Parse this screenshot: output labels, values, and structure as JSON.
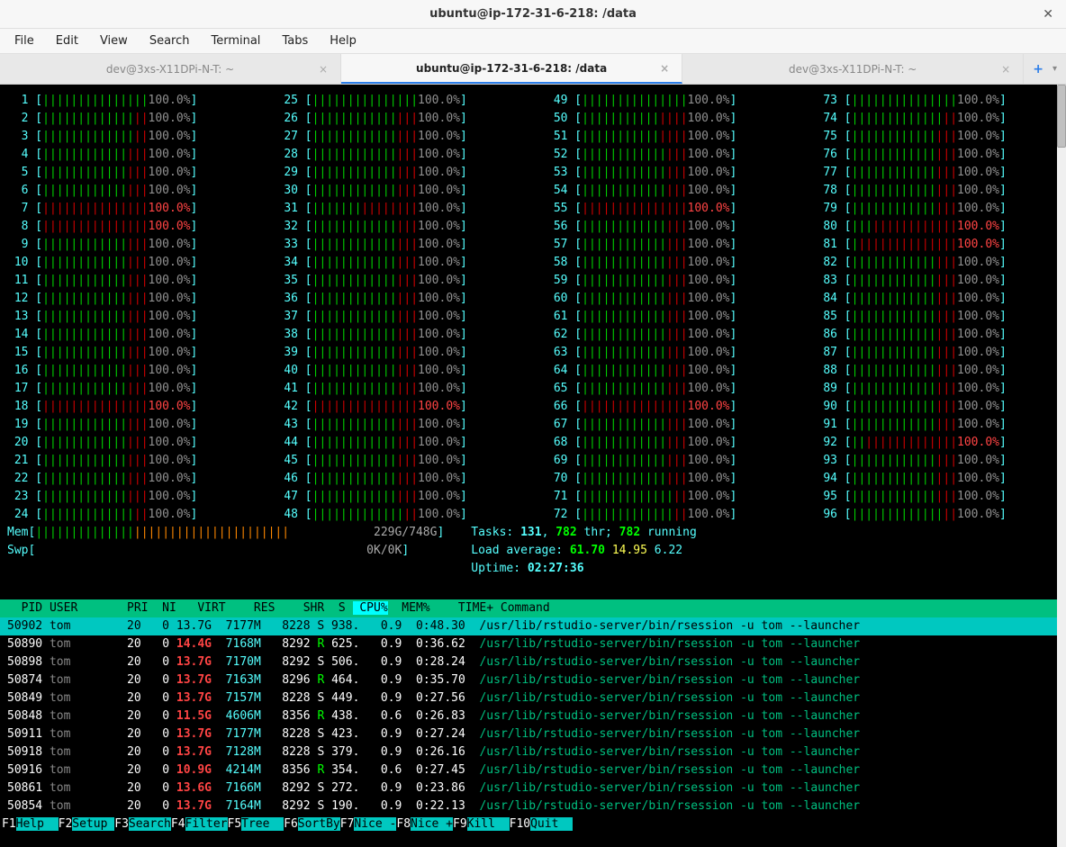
{
  "window": {
    "title": "ubuntu@ip-172-31-6-218: /data"
  },
  "menu": [
    "File",
    "Edit",
    "View",
    "Search",
    "Terminal",
    "Tabs",
    "Help"
  ],
  "tabs": {
    "items": [
      {
        "label": "dev@3xs-X11DPi-N-T: ~",
        "active": false
      },
      {
        "label": "ubuntu@ip-172-31-6-218: /data",
        "active": true
      },
      {
        "label": "dev@3xs-X11DPi-N-T: ~",
        "active": false
      }
    ]
  },
  "htop": {
    "cpu_count": 96,
    "bar_len": 15,
    "red_bar_rows": {
      "1": 15,
      "2": 13,
      "3": 13,
      "4": 12,
      "5": 12,
      "6": 12,
      "7": 0,
      "8": 0,
      "9": 12,
      "10": 12,
      "11": 12,
      "12": 12,
      "13": 12,
      "14": 12,
      "15": 12,
      "16": 12,
      "17": 12,
      "18": 0,
      "19": 12,
      "20": 12,
      "21": 12,
      "22": 12,
      "23": 12,
      "24": 13,
      "25": 15,
      "26": 12,
      "27": 12,
      "28": 12,
      "29": 12,
      "30": 12,
      "31": 7,
      "32": 12,
      "33": 12,
      "34": 12,
      "35": 12,
      "36": 12,
      "37": 12,
      "38": 12,
      "39": 12,
      "40": 12,
      "41": 12,
      "42": 0,
      "43": 12,
      "44": 12,
      "45": 12,
      "46": 12,
      "47": 12,
      "48": 13,
      "49": 15,
      "50": 11,
      "51": 11,
      "52": 12,
      "53": 12,
      "54": 12,
      "55": 0,
      "56": 12,
      "57": 12,
      "58": 12,
      "59": 12,
      "60": 12,
      "61": 12,
      "62": 12,
      "63": 12,
      "64": 12,
      "65": 12,
      "66": 0,
      "67": 12,
      "68": 12,
      "69": 12,
      "70": 12,
      "71": 13,
      "72": 13,
      "73": 15,
      "74": 13,
      "75": 12,
      "76": 12,
      "77": 12,
      "78": 12,
      "79": 12,
      "80": 3,
      "81": 1,
      "82": 12,
      "83": 12,
      "84": 12,
      "85": 12,
      "86": 12,
      "87": 12,
      "88": 12,
      "89": 12,
      "90": 12,
      "91": 12,
      "92": 2,
      "93": 12,
      "94": 12,
      "95": 12,
      "96": 13
    },
    "hot_pct": [
      7,
      8,
      18,
      42,
      55,
      66,
      80,
      81,
      92
    ],
    "mem": {
      "label": "Mem",
      "used": "229G",
      "total": "748G",
      "green": 14,
      "orange": 22
    },
    "swp": {
      "label": "Swp",
      "used": "0K",
      "total": "0K"
    },
    "tasks": {
      "label": "Tasks:",
      "total": "131",
      "thr": "782",
      "thr_label": "thr;",
      "running": "782",
      "running_label": "running"
    },
    "load": {
      "label": "Load average:",
      "l1": "61.70",
      "l5": "14.95",
      "l15": "6.22"
    },
    "uptime": {
      "label": "Uptime:",
      "value": "02:27:36"
    },
    "header": [
      "  PID",
      "USER     ",
      "PRI",
      " NI",
      " VIRT",
      "  RES",
      "  SHR",
      "S",
      "CPU%",
      "MEM%",
      "  TIME+ ",
      " Command"
    ],
    "sort_col": "CPU%",
    "processes": [
      {
        "pid": "50902",
        "user": "tom",
        "pri": "20",
        "ni": "0",
        "virt": "13.7G",
        "res": "7177M",
        "shr": "8228",
        "s": "S",
        "cpu": "938.",
        "mem": "0.9",
        "time": "0:48.30",
        "cmd": "/usr/lib/rstudio-server/bin/rsession -u tom --launcher",
        "sel": true
      },
      {
        "pid": "50890",
        "user": "tom",
        "pri": "20",
        "ni": "0",
        "virt": "14.4G",
        "res": "7168M",
        "shr": "8292",
        "s": "R",
        "cpu": "625.",
        "mem": "0.9",
        "time": "0:36.62",
        "cmd": "/usr/lib/rstudio-server/bin/rsession -u tom --launcher"
      },
      {
        "pid": "50898",
        "user": "tom",
        "pri": "20",
        "ni": "0",
        "virt": "13.7G",
        "res": "7170M",
        "shr": "8292",
        "s": "S",
        "cpu": "506.",
        "mem": "0.9",
        "time": "0:28.24",
        "cmd": "/usr/lib/rstudio-server/bin/rsession -u tom --launcher"
      },
      {
        "pid": "50874",
        "user": "tom",
        "pri": "20",
        "ni": "0",
        "virt": "13.7G",
        "res": "7163M",
        "shr": "8296",
        "s": "R",
        "cpu": "464.",
        "mem": "0.9",
        "time": "0:35.70",
        "cmd": "/usr/lib/rstudio-server/bin/rsession -u tom --launcher"
      },
      {
        "pid": "50849",
        "user": "tom",
        "pri": "20",
        "ni": "0",
        "virt": "13.7G",
        "res": "7157M",
        "shr": "8228",
        "s": "S",
        "cpu": "449.",
        "mem": "0.9",
        "time": "0:27.56",
        "cmd": "/usr/lib/rstudio-server/bin/rsession -u tom --launcher"
      },
      {
        "pid": "50848",
        "user": "tom",
        "pri": "20",
        "ni": "0",
        "virt": "11.5G",
        "res": "4606M",
        "shr": "8356",
        "s": "R",
        "cpu": "438.",
        "mem": "0.6",
        "time": "0:26.83",
        "cmd": "/usr/lib/rstudio-server/bin/rsession -u tom --launcher"
      },
      {
        "pid": "50911",
        "user": "tom",
        "pri": "20",
        "ni": "0",
        "virt": "13.7G",
        "res": "7177M",
        "shr": "8228",
        "s": "S",
        "cpu": "423.",
        "mem": "0.9",
        "time": "0:27.24",
        "cmd": "/usr/lib/rstudio-server/bin/rsession -u tom --launcher"
      },
      {
        "pid": "50918",
        "user": "tom",
        "pri": "20",
        "ni": "0",
        "virt": "13.7G",
        "res": "7128M",
        "shr": "8228",
        "s": "S",
        "cpu": "379.",
        "mem": "0.9",
        "time": "0:26.16",
        "cmd": "/usr/lib/rstudio-server/bin/rsession -u tom --launcher"
      },
      {
        "pid": "50916",
        "user": "tom",
        "pri": "20",
        "ni": "0",
        "virt": "10.9G",
        "res": "4214M",
        "shr": "8356",
        "s": "R",
        "cpu": "354.",
        "mem": "0.6",
        "time": "0:27.45",
        "cmd": "/usr/lib/rstudio-server/bin/rsession -u tom --launcher"
      },
      {
        "pid": "50861",
        "user": "tom",
        "pri": "20",
        "ni": "0",
        "virt": "13.6G",
        "res": "7166M",
        "shr": "8292",
        "s": "S",
        "cpu": "272.",
        "mem": "0.9",
        "time": "0:23.86",
        "cmd": "/usr/lib/rstudio-server/bin/rsession -u tom --launcher"
      },
      {
        "pid": "50854",
        "user": "tom",
        "pri": "20",
        "ni": "0",
        "virt": "13.7G",
        "res": "7164M",
        "shr": "8292",
        "s": "S",
        "cpu": "190.",
        "mem": "0.9",
        "time": "0:22.13",
        "cmd": "/usr/lib/rstudio-server/bin/rsession -u tom --launcher"
      }
    ],
    "footer": [
      {
        "key": "F1",
        "label": "Help  "
      },
      {
        "key": "F2",
        "label": "Setup "
      },
      {
        "key": "F3",
        "label": "Search"
      },
      {
        "key": "F4",
        "label": "Filter"
      },
      {
        "key": "F5",
        "label": "Tree  "
      },
      {
        "key": "F6",
        "label": "SortBy"
      },
      {
        "key": "F7",
        "label": "Nice -"
      },
      {
        "key": "F8",
        "label": "Nice +"
      },
      {
        "key": "F9",
        "label": "Kill  "
      },
      {
        "key": "F10",
        "label": "Quit  "
      }
    ]
  },
  "colors": {
    "cpu_bar_green": "#00d000",
    "cpu_bar_red": "#d00000",
    "cpu_num_grey": "#909090",
    "cpu_num_hot": "#ff4444",
    "cyan": "#55ffff",
    "header_bg": "#00c080",
    "selected_bg": "#00c8c0"
  }
}
